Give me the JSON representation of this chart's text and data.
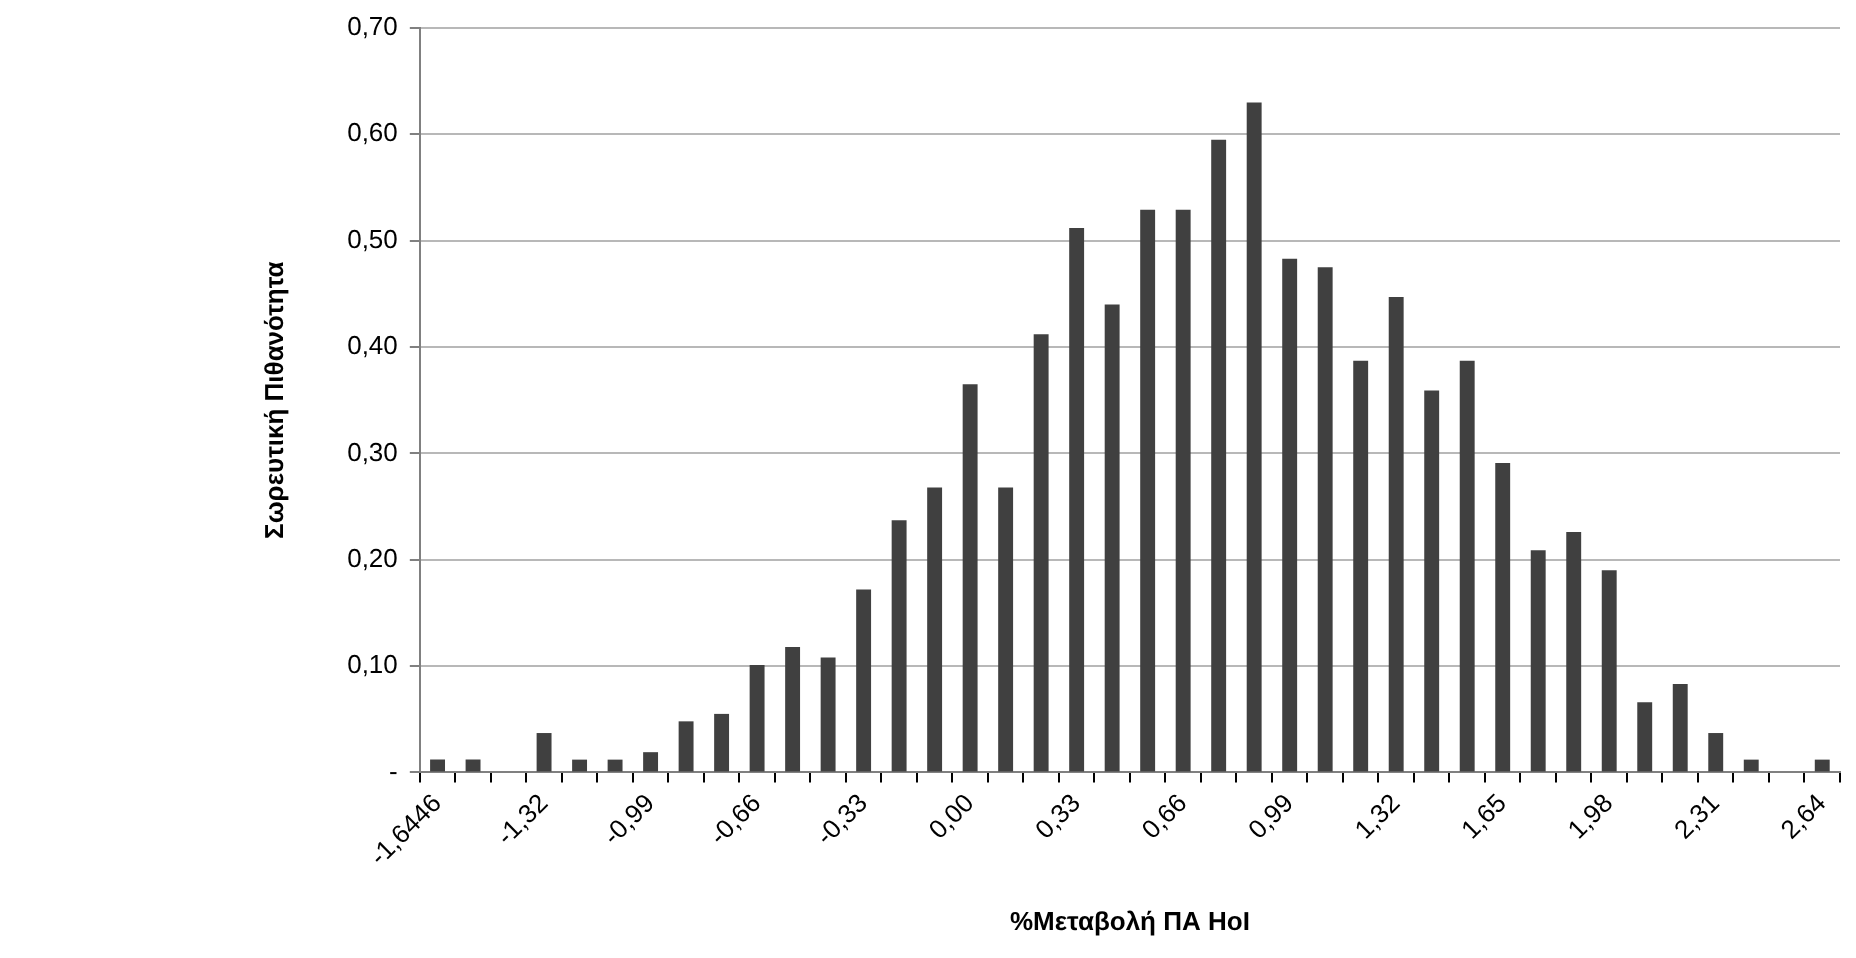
{
  "chart_data": {
    "type": "bar",
    "xlabel": "%Μεταβολή ΠΑ HoI",
    "ylabel": "Σωρευτική Πιθανότητα",
    "categories": [
      "-1,6446",
      null,
      null,
      "-1,32",
      null,
      null,
      "-0,99",
      null,
      null,
      "-0,66",
      null,
      null,
      "-0,33",
      null,
      null,
      "0,00",
      null,
      null,
      "0,33",
      null,
      null,
      "0,66",
      null,
      null,
      "0,99",
      null,
      null,
      "1,32",
      null,
      null,
      "1,65",
      null,
      null,
      "1,98",
      null,
      null,
      "2,31",
      null,
      null,
      "2,64"
    ],
    "values": [
      0.012,
      0.012,
      0,
      0.037,
      0.012,
      0.012,
      0.019,
      0.048,
      0.055,
      0.101,
      0.118,
      0.108,
      0.172,
      0.237,
      0.268,
      0.365,
      0.268,
      0.412,
      0.512,
      0.44,
      0.529,
      0.529,
      0.595,
      0.63,
      0.483,
      0.475,
      0.387,
      0.447,
      0.359,
      0.387,
      0.291,
      0.209,
      0.226,
      0.19,
      0.066,
      0.083,
      0.037,
      0.012,
      0,
      0.012
    ],
    "color": "#404040",
    "ylim": [
      0,
      0.7
    ],
    "yticks": [
      {
        "value": 0,
        "label": "-"
      },
      {
        "value": 0.1,
        "label": "0,10"
      },
      {
        "value": 0.2,
        "label": "0,20"
      },
      {
        "value": 0.3,
        "label": "0,30"
      },
      {
        "value": 0.4,
        "label": "0,40"
      },
      {
        "value": 0.5,
        "label": "0,50"
      },
      {
        "value": 0.6,
        "label": "0,60"
      },
      {
        "value": 0.7,
        "label": "0,70"
      }
    ],
    "grid": "y"
  }
}
